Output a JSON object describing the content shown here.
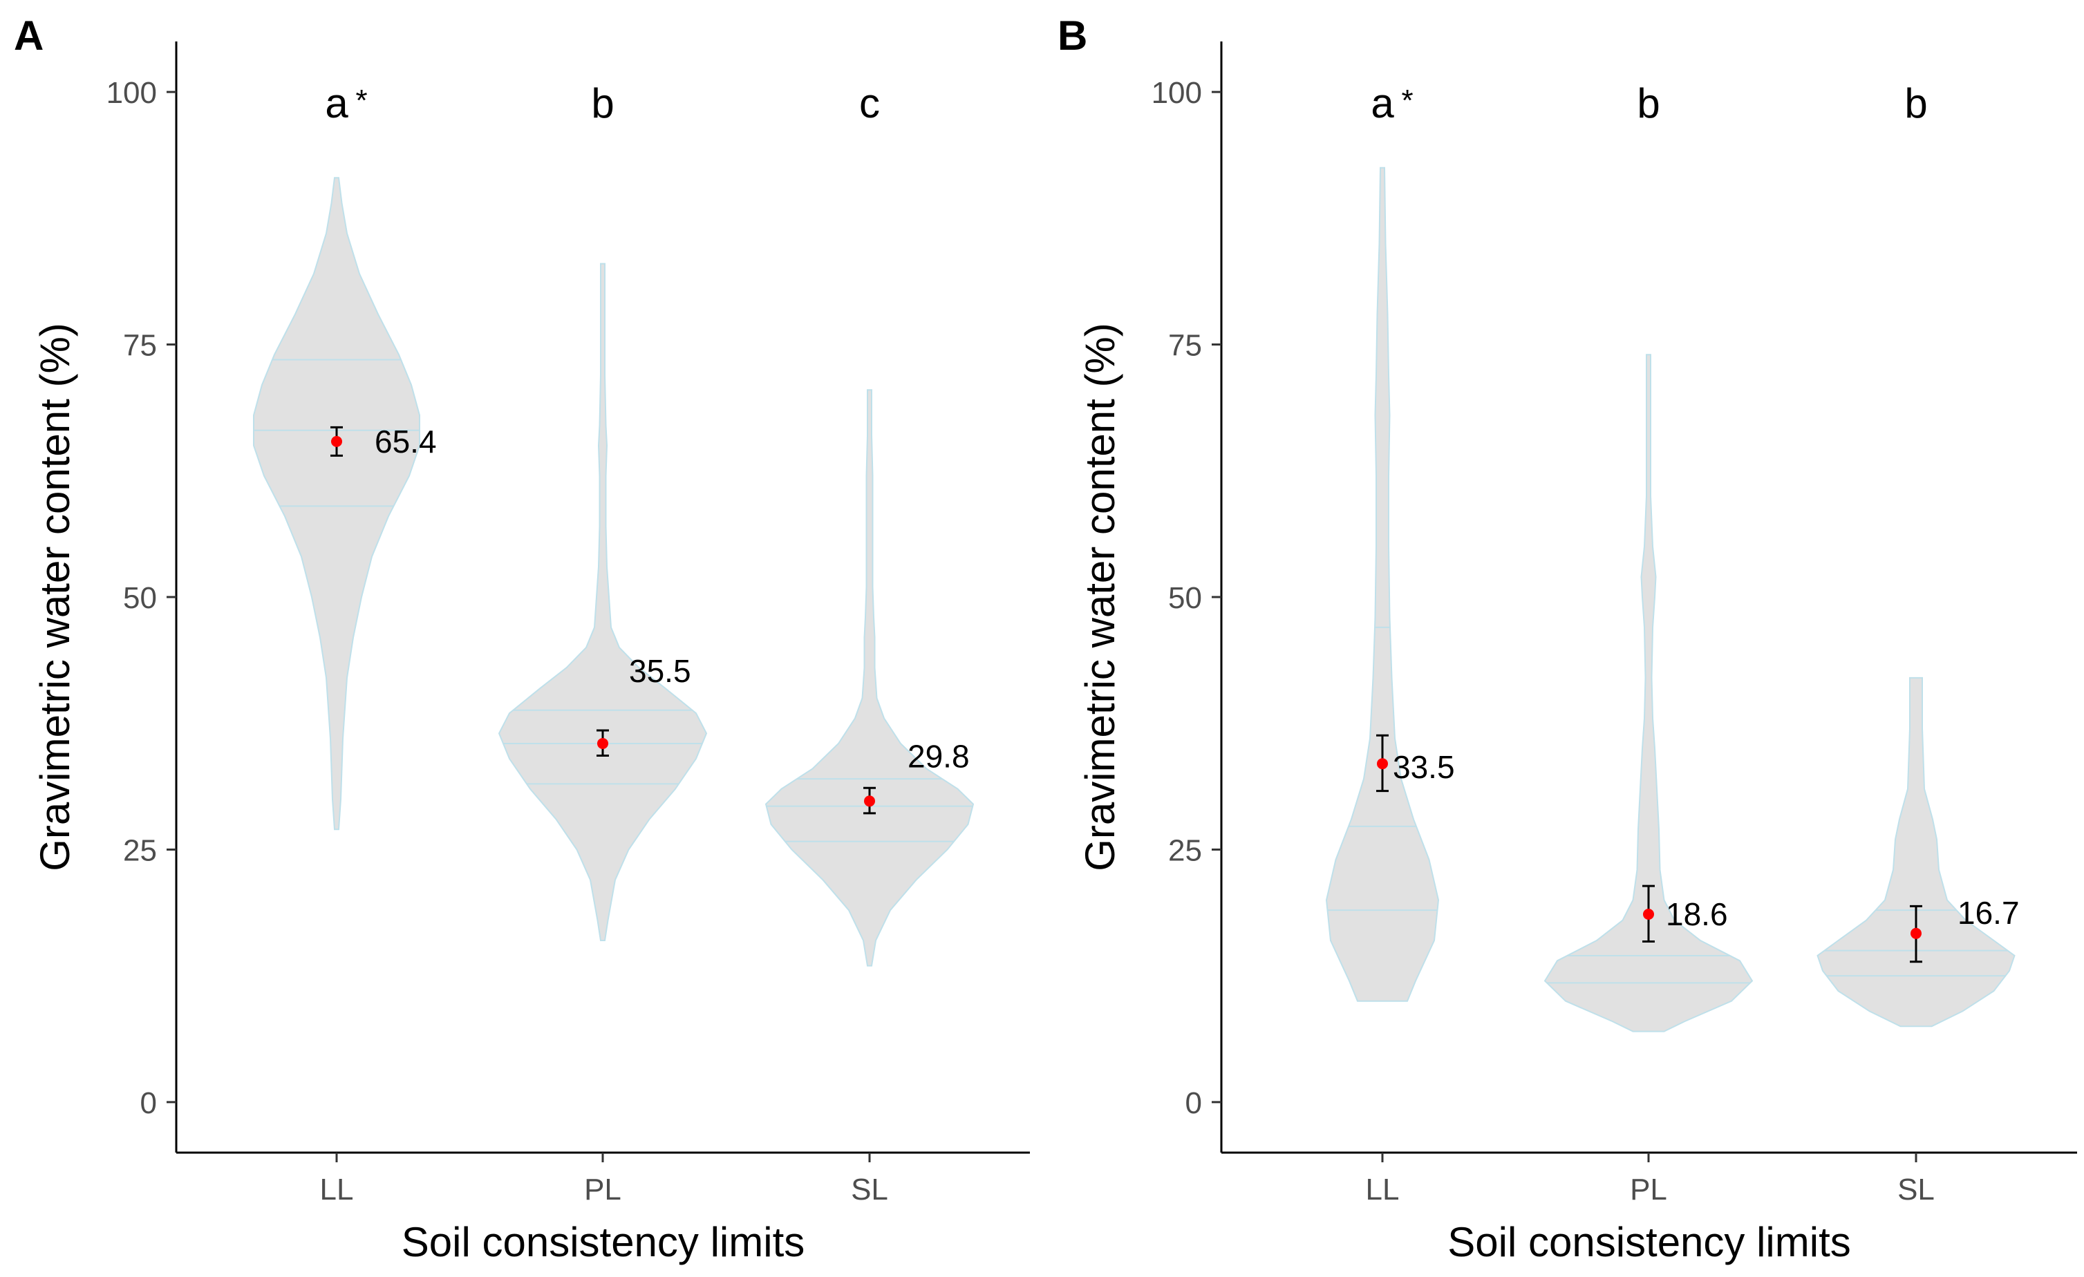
{
  "chart_data": [
    {
      "type": "violin",
      "panel_label": "A",
      "xlabel": "Soil consistency limits",
      "ylabel": "Gravimetric water content (%)",
      "ylim": [
        -5,
        105
      ],
      "yticks": [
        0,
        25,
        50,
        75,
        100
      ],
      "grid": false,
      "categories": [
        "LL",
        "PL",
        "SL"
      ],
      "group_letters": [
        "a",
        "b",
        "c"
      ],
      "significance_marks": [
        "*",
        "",
        ""
      ],
      "means": [
        65.4,
        35.5,
        29.8
      ],
      "error_bars": [
        [
          64.0,
          66.8
        ],
        [
          34.3,
          36.8
        ],
        [
          28.6,
          31.1
        ]
      ],
      "mean_labels": [
        "65.4",
        "35.5",
        "29.8"
      ],
      "quartiles": [
        [
          59.0,
          66.5,
          73.5
        ],
        [
          31.5,
          35.5,
          38.8
        ],
        [
          25.8,
          29.3,
          32.0
        ]
      ],
      "violin_profiles": [
        [
          [
            27,
            0.02
          ],
          [
            30,
            0.04
          ],
          [
            36,
            0.06
          ],
          [
            42,
            0.1
          ],
          [
            46,
            0.16
          ],
          [
            50,
            0.24
          ],
          [
            54,
            0.34
          ],
          [
            58,
            0.5
          ],
          [
            62,
            0.7
          ],
          [
            65,
            0.8
          ],
          [
            68,
            0.8
          ],
          [
            71,
            0.72
          ],
          [
            74,
            0.6
          ],
          [
            78,
            0.4
          ],
          [
            82,
            0.22
          ],
          [
            86,
            0.1
          ],
          [
            89,
            0.05
          ],
          [
            91.5,
            0.02
          ]
        ],
        [
          [
            16,
            0.02
          ],
          [
            18,
            0.05
          ],
          [
            22,
            0.12
          ],
          [
            25,
            0.25
          ],
          [
            28,
            0.45
          ],
          [
            31,
            0.7
          ],
          [
            34,
            0.9
          ],
          [
            36.5,
            1.0
          ],
          [
            38.5,
            0.9
          ],
          [
            41,
            0.6
          ],
          [
            43,
            0.35
          ],
          [
            45,
            0.16
          ],
          [
            47,
            0.08
          ],
          [
            50,
            0.06
          ],
          [
            53,
            0.04
          ],
          [
            57,
            0.03
          ],
          [
            62,
            0.03
          ],
          [
            65,
            0.04
          ],
          [
            67,
            0.03
          ],
          [
            72,
            0.02
          ],
          [
            78,
            0.02
          ],
          [
            83,
            0.02
          ]
        ],
        [
          [
            13.5,
            0.02
          ],
          [
            16,
            0.06
          ],
          [
            19,
            0.2
          ],
          [
            22,
            0.45
          ],
          [
            25,
            0.75
          ],
          [
            27.5,
            0.95
          ],
          [
            29.5,
            1.0
          ],
          [
            31,
            0.85
          ],
          [
            33,
            0.55
          ],
          [
            35.5,
            0.3
          ],
          [
            38,
            0.14
          ],
          [
            40,
            0.07
          ],
          [
            43,
            0.05
          ],
          [
            46,
            0.05
          ],
          [
            48,
            0.04
          ],
          [
            51,
            0.03
          ],
          [
            55,
            0.03
          ],
          [
            58,
            0.03
          ],
          [
            62,
            0.03
          ],
          [
            66,
            0.02
          ],
          [
            70.5,
            0.02
          ]
        ]
      ]
    },
    {
      "type": "violin",
      "panel_label": "B",
      "xlabel": "Soil consistency limits",
      "ylabel": "Gravimetric water content (%)",
      "ylim": [
        -5,
        105
      ],
      "yticks": [
        0,
        25,
        50,
        75,
        100
      ],
      "grid": false,
      "categories": [
        "LL",
        "PL",
        "SL"
      ],
      "group_letters": [
        "a",
        "b",
        "b"
      ],
      "significance_marks": [
        "*",
        "",
        ""
      ],
      "means": [
        33.5,
        18.6,
        16.7
      ],
      "error_bars": [
        [
          30.8,
          36.3
        ],
        [
          15.9,
          21.4
        ],
        [
          13.9,
          19.4
        ]
      ],
      "mean_labels": [
        "33.5",
        "18.6",
        "16.7"
      ],
      "quartiles": [
        [
          19.0,
          27.3,
          47.0
        ],
        [
          11.8,
          14.5,
          null
        ],
        [
          12.5,
          15.0,
          19.0
        ]
      ],
      "violin_profiles": [
        [
          [
            10,
            0.24
          ],
          [
            12,
            0.32
          ],
          [
            16,
            0.5
          ],
          [
            20,
            0.54
          ],
          [
            24,
            0.45
          ],
          [
            28,
            0.3
          ],
          [
            32,
            0.18
          ],
          [
            36,
            0.12
          ],
          [
            42,
            0.09
          ],
          [
            48,
            0.07
          ],
          [
            55,
            0.06
          ],
          [
            62,
            0.06
          ],
          [
            68,
            0.07
          ],
          [
            72,
            0.06
          ],
          [
            78,
            0.05
          ],
          [
            85,
            0.03
          ],
          [
            92.5,
            0.02
          ]
        ],
        [
          [
            7,
            0.15
          ],
          [
            8,
            0.35
          ],
          [
            10,
            0.8
          ],
          [
            12,
            1.0
          ],
          [
            14,
            0.88
          ],
          [
            16,
            0.5
          ],
          [
            18,
            0.25
          ],
          [
            20,
            0.15
          ],
          [
            23,
            0.11
          ],
          [
            27,
            0.1
          ],
          [
            31,
            0.08
          ],
          [
            35,
            0.06
          ],
          [
            38,
            0.04
          ],
          [
            42,
            0.03
          ],
          [
            47,
            0.04
          ],
          [
            50,
            0.06
          ],
          [
            52,
            0.07
          ],
          [
            55,
            0.04
          ],
          [
            60,
            0.02
          ],
          [
            66,
            0.02
          ],
          [
            74,
            0.02
          ]
        ],
        [
          [
            7.5,
            0.15
          ],
          [
            9,
            0.45
          ],
          [
            11,
            0.75
          ],
          [
            13,
            0.9
          ],
          [
            14.5,
            0.95
          ],
          [
            16,
            0.75
          ],
          [
            18,
            0.48
          ],
          [
            20,
            0.3
          ],
          [
            23,
            0.22
          ],
          [
            26,
            0.2
          ],
          [
            28,
            0.16
          ],
          [
            31,
            0.08
          ],
          [
            34,
            0.07
          ],
          [
            37,
            0.06
          ],
          [
            40,
            0.06
          ],
          [
            42,
            0.06
          ]
        ]
      ]
    }
  ]
}
